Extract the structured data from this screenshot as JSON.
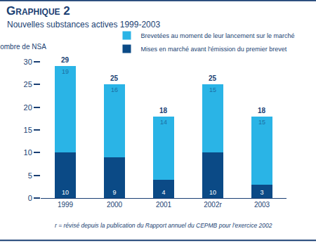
{
  "chart_data": {
    "type": "bar",
    "title": "Graphique 2",
    "subtitle": "Nouvelles substances actives 1999-2003",
    "ylabel": "Nombre de NSA",
    "categories": [
      "1999",
      "2000",
      "2001",
      "2002r",
      "2003"
    ],
    "series": [
      {
        "name": "Mises en marché avant l'émission du premier brevet",
        "color": "#0b4a86",
        "values": [
          10,
          9,
          4,
          10,
          3
        ]
      },
      {
        "name": "Brevetées au moment de leur lancement sur le marché",
        "color": "#2ab4e6",
        "values": [
          19,
          16,
          14,
          15,
          15
        ]
      }
    ],
    "totals": [
      29,
      25,
      18,
      25,
      18
    ],
    "stacked": true,
    "data_labels": true,
    "ylim": [
      0,
      30
    ],
    "yticks": [
      0,
      5,
      10,
      15,
      20,
      25,
      30
    ],
    "grid": false,
    "legend": "top right",
    "note": "r = révisé depuis la publication du Rapport annuel du CEPMB pour l'exercice 2002"
  }
}
